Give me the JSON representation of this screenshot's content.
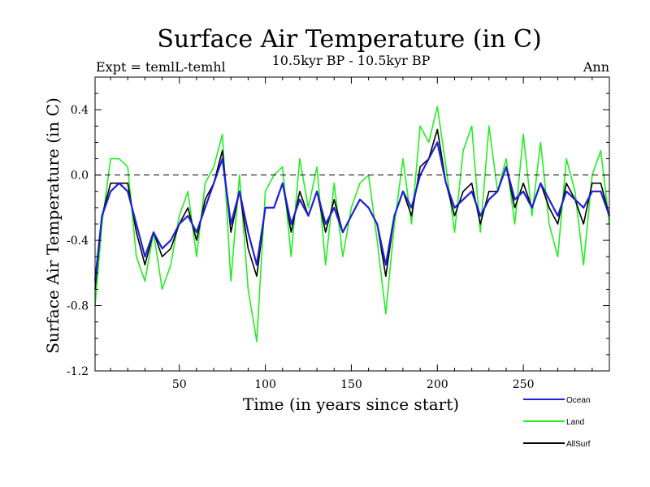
{
  "chart_data": {
    "type": "line",
    "title": "Surface Air Temperature (in C)",
    "subtitle": "10.5kyr BP - 10.5kyr BP",
    "expt_label": "Expt = temlL-temhl",
    "season_label": "Ann",
    "xlabel": "Time (in years since start)",
    "ylabel": "Surface Air Temperature (in C)",
    "xlim": [
      1,
      300
    ],
    "ylim": [
      -1.2,
      0.6
    ],
    "x_ticks": [
      50,
      100,
      150,
      200,
      250
    ],
    "x_tick_labels": [
      "50",
      "100",
      "150",
      "200",
      "250"
    ],
    "y_ticks": [
      -1.2,
      -0.8,
      -0.4,
      0.0,
      0.4
    ],
    "y_tick_labels": [
      "-1.2",
      "-0.8",
      "-0.4",
      "0.0",
      "0.4"
    ],
    "reference_line": 0.0,
    "x_step": 5,
    "series": [
      {
        "name": "Ocean",
        "color": "#1f1fdc",
        "x": [
          1,
          5,
          10,
          15,
          20,
          25,
          30,
          35,
          40,
          45,
          50,
          55,
          60,
          65,
          70,
          75,
          80,
          85,
          90,
          95,
          100,
          105,
          110,
          115,
          120,
          125,
          130,
          135,
          140,
          145,
          150,
          155,
          160,
          165,
          170,
          175,
          180,
          185,
          190,
          195,
          200,
          205,
          210,
          215,
          220,
          225,
          230,
          235,
          240,
          245,
          250,
          255,
          260,
          265,
          270,
          275,
          280,
          285,
          290,
          295,
          300
        ],
        "values": [
          -0.65,
          -0.25,
          -0.1,
          -0.05,
          -0.1,
          -0.3,
          -0.5,
          -0.35,
          -0.45,
          -0.4,
          -0.3,
          -0.25,
          -0.35,
          -0.2,
          -0.05,
          0.1,
          -0.3,
          -0.1,
          -0.35,
          -0.55,
          -0.2,
          -0.2,
          -0.05,
          -0.3,
          -0.15,
          -0.25,
          -0.1,
          -0.3,
          -0.2,
          -0.35,
          -0.25,
          -0.15,
          -0.2,
          -0.3,
          -0.55,
          -0.25,
          -0.1,
          -0.2,
          0.0,
          0.1,
          0.2,
          -0.05,
          -0.2,
          -0.15,
          -0.1,
          -0.25,
          -0.15,
          -0.1,
          0.05,
          -0.15,
          -0.1,
          -0.2,
          -0.05,
          -0.15,
          -0.25,
          -0.1,
          -0.15,
          -0.2,
          -0.1,
          -0.1,
          -0.25
        ]
      },
      {
        "name": "Land",
        "color": "#22ee22",
        "x": [
          1,
          5,
          10,
          15,
          20,
          25,
          30,
          35,
          40,
          45,
          50,
          55,
          60,
          65,
          70,
          75,
          80,
          85,
          90,
          95,
          100,
          105,
          110,
          115,
          120,
          125,
          130,
          135,
          140,
          145,
          150,
          155,
          160,
          165,
          170,
          175,
          180,
          185,
          190,
          195,
          200,
          205,
          210,
          215,
          220,
          225,
          230,
          235,
          240,
          245,
          250,
          255,
          260,
          265,
          270,
          275,
          280,
          285,
          290,
          295,
          300
        ],
        "values": [
          -0.8,
          -0.3,
          0.1,
          0.1,
          0.05,
          -0.5,
          -0.65,
          -0.35,
          -0.7,
          -0.55,
          -0.25,
          -0.1,
          -0.5,
          -0.05,
          0.05,
          0.25,
          -0.65,
          0.0,
          -0.7,
          -1.02,
          -0.1,
          0.0,
          0.05,
          -0.5,
          0.1,
          -0.2,
          0.05,
          -0.55,
          -0.05,
          -0.5,
          -0.2,
          -0.05,
          0.0,
          -0.4,
          -0.85,
          -0.3,
          0.1,
          -0.3,
          0.3,
          0.2,
          0.42,
          0.05,
          -0.35,
          0.15,
          0.3,
          -0.35,
          0.3,
          -0.1,
          0.1,
          -0.3,
          0.25,
          -0.25,
          0.2,
          -0.3,
          -0.5,
          0.1,
          -0.1,
          -0.55,
          0.0,
          0.15,
          -0.3
        ]
      },
      {
        "name": "AllSurf",
        "color": "#000000",
        "x": [
          1,
          5,
          10,
          15,
          20,
          25,
          30,
          35,
          40,
          45,
          50,
          55,
          60,
          65,
          70,
          75,
          80,
          85,
          90,
          95,
          100,
          105,
          110,
          115,
          120,
          125,
          130,
          135,
          140,
          145,
          150,
          155,
          160,
          165,
          170,
          175,
          180,
          185,
          190,
          195,
          200,
          205,
          210,
          215,
          220,
          225,
          230,
          235,
          240,
          245,
          250,
          255,
          260,
          265,
          270,
          275,
          280,
          285,
          290,
          295,
          300
        ],
        "values": [
          -0.7,
          -0.25,
          -0.05,
          -0.05,
          -0.05,
          -0.35,
          -0.55,
          -0.35,
          -0.5,
          -0.45,
          -0.3,
          -0.2,
          -0.4,
          -0.15,
          -0.05,
          0.15,
          -0.35,
          -0.1,
          -0.45,
          -0.62,
          -0.2,
          -0.2,
          -0.05,
          -0.35,
          -0.1,
          -0.25,
          -0.1,
          -0.35,
          -0.15,
          -0.35,
          -0.25,
          -0.15,
          -0.2,
          -0.3,
          -0.62,
          -0.25,
          -0.1,
          -0.25,
          0.05,
          0.1,
          0.28,
          -0.05,
          -0.25,
          -0.1,
          -0.05,
          -0.3,
          -0.1,
          -0.1,
          0.05,
          -0.2,
          -0.05,
          -0.2,
          -0.05,
          -0.2,
          -0.3,
          -0.05,
          -0.15,
          -0.3,
          -0.05,
          -0.05,
          -0.25
        ]
      }
    ],
    "legend_position": "bottom-right"
  }
}
